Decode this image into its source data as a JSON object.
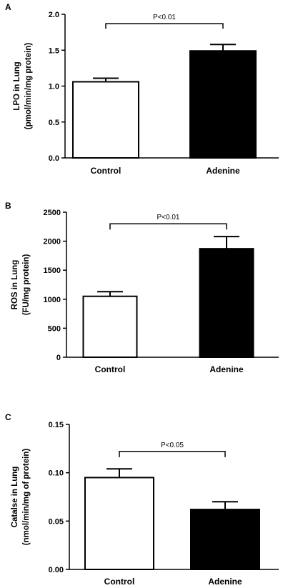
{
  "chart_data": [
    {
      "panel": "A",
      "type": "bar",
      "categories": [
        "Control",
        "Adenine"
      ],
      "values": [
        1.06,
        1.49
      ],
      "errors": [
        0.05,
        0.09
      ],
      "colors": [
        "#ffffff",
        "#000000"
      ],
      "ylabel": [
        "LPO in Lung",
        "(pmol/min/mg protein)"
      ],
      "ylim": [
        0,
        2.0
      ],
      "yticks": [
        0.0,
        0.5,
        1.0,
        1.5,
        2.0
      ],
      "ytick_labels": [
        "0.0",
        "0.5",
        "1.0",
        "1.5",
        "2.0"
      ],
      "annotation": "P<0.01",
      "bracket_y": 1.87
    },
    {
      "panel": "B",
      "type": "bar",
      "categories": [
        "Control",
        "Adenine"
      ],
      "values": [
        1050,
        1870
      ],
      "errors": [
        80,
        210
      ],
      "colors": [
        "#ffffff",
        "#000000"
      ],
      "ylabel": [
        "ROS in Lung",
        "(FU/mg protein)"
      ],
      "ylim": [
        0,
        2500
      ],
      "yticks": [
        0,
        500,
        1000,
        1500,
        2000,
        2500
      ],
      "ytick_labels": [
        "0",
        "500",
        "1000",
        "1500",
        "2000",
        "2500"
      ],
      "annotation": "P<0.01",
      "bracket_y": 2300
    },
    {
      "panel": "C",
      "type": "bar",
      "categories": [
        "Control",
        "Adenine"
      ],
      "values": [
        0.095,
        0.062
      ],
      "errors": [
        0.009,
        0.008
      ],
      "colors": [
        "#ffffff",
        "#000000"
      ],
      "ylabel": [
        "Catalse in Lung",
        "(nmol/min/mg of protein)"
      ],
      "ylim": [
        0,
        0.15
      ],
      "yticks": [
        0.0,
        0.05,
        0.1,
        0.15
      ],
      "ytick_labels": [
        "0.00",
        "0.05",
        "0.10",
        "0.15"
      ],
      "annotation": "P<0.05",
      "bracket_y": 0.122
    }
  ]
}
